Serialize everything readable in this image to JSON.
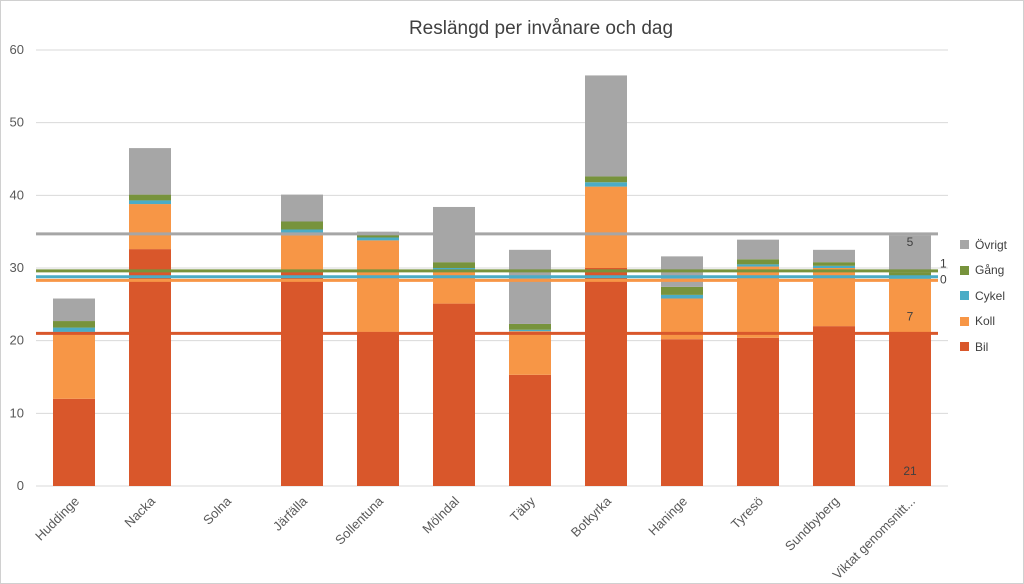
{
  "chart_data": {
    "type": "bar",
    "stacked": true,
    "title": "Reslängd per invånare och dag",
    "xlabel": "",
    "ylabel": "",
    "ylim": [
      0,
      60
    ],
    "yticks": [
      0,
      10,
      20,
      30,
      40,
      50,
      60
    ],
    "grid": true,
    "legend_position": "right",
    "categories": [
      "Huddinge",
      "Nacka",
      "Solna",
      "Järfälla",
      "Sollentuna",
      "Mölndal",
      "Täby",
      "Botkyrka",
      "Haninge",
      "Tyresö",
      "Sundbyberg",
      "Viktat genomsnitt..."
    ],
    "series": [
      {
        "name": "Bil",
        "color": "#d9572b",
        "values": [
          12,
          32.6,
          0,
          29.5,
          21.2,
          25.1,
          15.3,
          30,
          20.2,
          20.4,
          22,
          21
        ]
      },
      {
        "name": "Koll",
        "color": "#f79646",
        "values": [
          9.2,
          6.2,
          0,
          5,
          12.6,
          4.6,
          6,
          11.2,
          5.6,
          9.8,
          8,
          7.3
        ]
      },
      {
        "name": "Cykel",
        "color": "#4bacc6",
        "values": [
          0.6,
          0.5,
          0,
          0.8,
          0.4,
          0.3,
          0.2,
          0.6,
          0.5,
          0.3,
          0.3,
          0.3
        ]
      },
      {
        "name": "Gång",
        "color": "#77933c",
        "values": [
          0.9,
          0.8,
          0,
          1.1,
          0.6,
          0.8,
          0.8,
          0.8,
          1.1,
          0.7,
          0.5,
          0.8
        ]
      },
      {
        "name": "Övrigt",
        "color": "#a6a6a6",
        "values": [
          3.1,
          6.4,
          0,
          3.7,
          0.2,
          7.6,
          10.2,
          13.9,
          4.2,
          2.7,
          1.7,
          5.1
        ]
      }
    ],
    "reference_lines": [
      {
        "name": "Övrigt",
        "color": "#a6a6a6",
        "value": 34.7
      },
      {
        "name": "Gång",
        "color": "#77933c",
        "value": 29.6
      },
      {
        "name": "Cykel",
        "color": "#4bacc6",
        "value": 28.8
      },
      {
        "name": "Koll",
        "color": "#f79646",
        "value": 28.3
      },
      {
        "name": "Bil",
        "color": "#d9572b",
        "value": 21
      }
    ],
    "data_labels": [
      {
        "category": "Viktat genomsnitt...",
        "series": "Bil",
        "text": "21"
      },
      {
        "category": "Viktat genomsnitt...",
        "series": "Koll",
        "text": "7"
      },
      {
        "category": "Viktat genomsnitt...",
        "series": "Cykel",
        "text": "0"
      },
      {
        "category": "Viktat genomsnitt...",
        "series": "Gång",
        "text": "1"
      },
      {
        "category": "Viktat genomsnitt...",
        "series": "Övrigt",
        "text": "5"
      }
    ],
    "legend_order": [
      "Övrigt",
      "Gång",
      "Cykel",
      "Koll",
      "Bil"
    ]
  }
}
